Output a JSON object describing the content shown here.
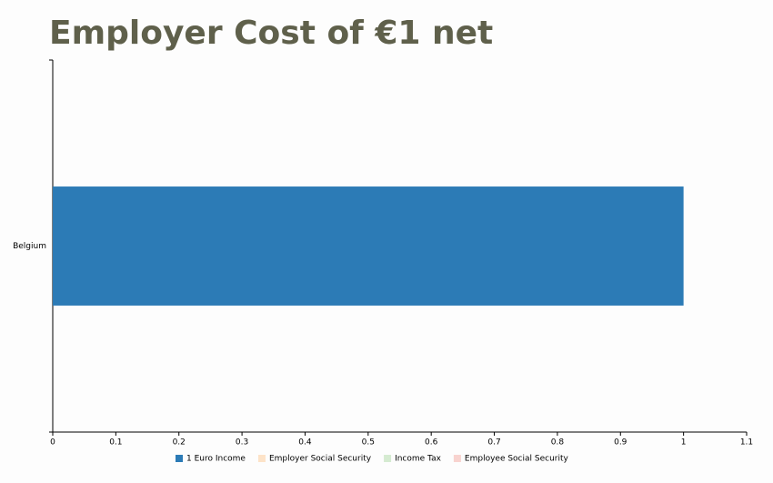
{
  "chart_data": {
    "type": "stacked-horizontal-bar",
    "title": "Employer Cost of €1 net",
    "categories": [
      "Belgium"
    ],
    "series": [
      {
        "name": "1 Euro Income",
        "color": "#2c7bb6",
        "values": [
          1
        ],
        "hidden": false
      },
      {
        "name": "Employer Social Security",
        "color": "#fde3c8",
        "values": [
          null
        ],
        "hidden": true
      },
      {
        "name": "Income Tax",
        "color": "#d5ebd1",
        "values": [
          null
        ],
        "hidden": true
      },
      {
        "name": "Employee Social Security",
        "color": "#f8d3cf",
        "values": [
          null
        ],
        "hidden": true
      }
    ],
    "xlim": [
      0,
      1.1
    ],
    "xticks": [
      0,
      0.1,
      0.2,
      0.3,
      0.4,
      0.5,
      0.6,
      0.7,
      0.8,
      0.9,
      1,
      1.1
    ],
    "grid": false
  }
}
